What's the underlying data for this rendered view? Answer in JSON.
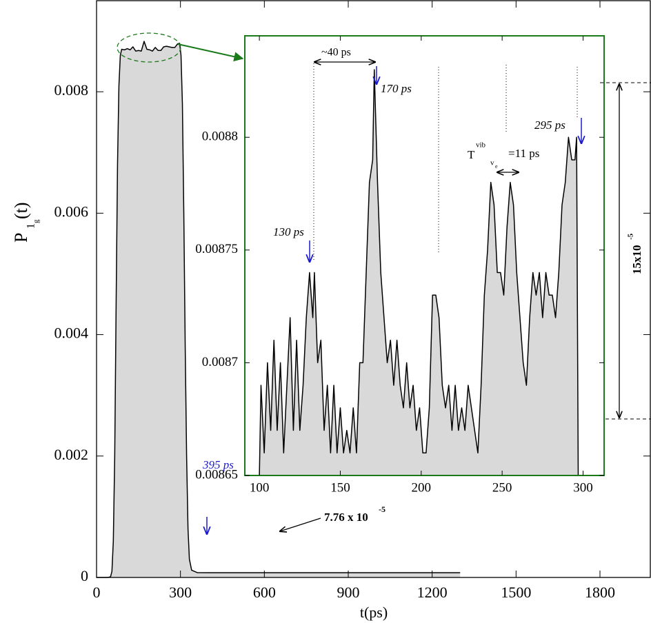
{
  "chart_data": [
    {
      "type": "area",
      "x_label": "t(ps)",
      "y_label": {
        "symbol": "P",
        "subscript": "1",
        "subsubscript": "g",
        "argument": "(t)"
      },
      "x": [
        0,
        40,
        50,
        55,
        60,
        65,
        70,
        75,
        80,
        85,
        90,
        100,
        110,
        120,
        130,
        140,
        150,
        160,
        170,
        180,
        190,
        200,
        210,
        220,
        230,
        240,
        250,
        260,
        270,
        280,
        290,
        297,
        302,
        307,
        312,
        317,
        322,
        327,
        332,
        340,
        360,
        395,
        1300
      ],
      "series": [
        {
          "color": "#000000",
          "fill": "#d9d9d9",
          "values": [
            0,
            0,
            1e-05,
            0.0001,
            0.0006,
            0.002,
            0.0045,
            0.0068,
            0.0081,
            0.0086,
            0.0087,
            0.00869,
            0.00871,
            0.00869,
            0.00874,
            0.00867,
            0.00868,
            0.00867,
            0.00883,
            0.0087,
            0.00869,
            0.00867,
            0.00873,
            0.00868,
            0.00868,
            0.00874,
            0.00875,
            0.00874,
            0.00873,
            0.00873,
            0.00879,
            0.0088,
            0.0086,
            0.0078,
            0.006,
            0.0038,
            0.002,
            0.0008,
            0.0003,
            0.00012,
            8e-05,
            7.76e-05,
            7.76e-05
          ]
        }
      ],
      "xlim": [
        0,
        1980
      ],
      "xticks": [
        0,
        300,
        600,
        900,
        1200,
        1500,
        1800
      ],
      "ylim": [
        0,
        0.0095
      ],
      "yticks": [
        0,
        0.002,
        0.004,
        0.006,
        0.008
      ],
      "annotations": {
        "arrival": "395 ps",
        "plateau_base": "7.76 x 10",
        "plateau_exp": "-5",
        "span_base": "15x10",
        "span_exp": "-5"
      }
    },
    {
      "type": "area",
      "x": [
        100,
        101,
        103,
        105,
        107,
        109,
        111,
        113,
        115,
        117,
        119,
        121,
        123,
        125,
        127,
        129,
        131,
        133,
        134,
        136,
        138,
        140,
        142,
        144,
        146,
        148,
        150,
        152,
        154,
        156,
        158,
        160,
        162,
        164,
        166,
        168,
        170,
        171,
        173,
        175,
        177,
        179,
        181,
        183,
        185,
        187,
        189,
        191,
        193,
        195,
        197,
        199,
        201,
        203,
        205,
        207,
        209,
        211,
        213,
        215,
        217,
        219,
        221,
        223,
        225,
        227,
        229,
        231,
        233,
        235,
        237,
        239,
        241,
        243,
        245,
        247,
        249,
        251,
        253,
        255,
        257,
        259,
        261,
        263,
        265,
        267,
        269,
        271,
        273,
        275,
        277,
        279,
        281,
        283,
        285,
        287,
        289,
        291,
        293,
        295,
        296,
        297
      ],
      "series": [
        {
          "color": "#000000",
          "fill": "#d9d9d9",
          "values": [
            0.00865,
            0.00869,
            0.00866,
            0.0087,
            0.00867,
            0.00871,
            0.00867,
            0.0087,
            0.00866,
            0.00869,
            0.00872,
            0.00867,
            0.00871,
            0.00867,
            0.00869,
            0.00872,
            0.00874,
            0.00872,
            0.00874,
            0.0087,
            0.00871,
            0.00867,
            0.00869,
            0.00866,
            0.00869,
            0.00866,
            0.00868,
            0.00866,
            0.00867,
            0.00866,
            0.00868,
            0.00866,
            0.0087,
            0.0087,
            0.00874,
            0.00878,
            0.00879,
            0.00883,
            0.00878,
            0.00874,
            0.00872,
            0.0087,
            0.00871,
            0.00869,
            0.00871,
            0.00869,
            0.00868,
            0.0087,
            0.00868,
            0.00869,
            0.00867,
            0.00868,
            0.00866,
            0.00866,
            0.00868,
            0.00873,
            0.00873,
            0.00872,
            0.00869,
            0.00868,
            0.00869,
            0.00867,
            0.00869,
            0.00867,
            0.00868,
            0.00867,
            0.00869,
            0.00868,
            0.00867,
            0.00866,
            0.00869,
            0.00873,
            0.00875,
            0.00878,
            0.00877,
            0.00874,
            0.00874,
            0.00873,
            0.00876,
            0.00878,
            0.00877,
            0.00874,
            0.00872,
            0.0087,
            0.00869,
            0.00872,
            0.00874,
            0.00873,
            0.00874,
            0.00872,
            0.00874,
            0.00873,
            0.00873,
            0.00872,
            0.00874,
            0.00877,
            0.00878,
            0.0088,
            0.00879,
            0.00879,
            0.0088,
            0.00865
          ]
        }
      ],
      "xlim": [
        91,
        313
      ],
      "xticks": [
        100,
        150,
        200,
        250,
        300
      ],
      "ylim": [
        0.00865,
        0.008845
      ],
      "yticks": [
        0.00865,
        0.0087,
        0.00875,
        0.0088
      ],
      "frame_color": "#1a7a1a",
      "annotations": {
        "spacing": "~40 ps",
        "peak_170": "170 ps",
        "peak_130": "130 ps",
        "peak_295": "295 ps",
        "period_symbol": "T",
        "period_sup": "vib",
        "period_sub": "v",
        "period_subsub": "e",
        "period_value": "=11 ps"
      }
    }
  ]
}
